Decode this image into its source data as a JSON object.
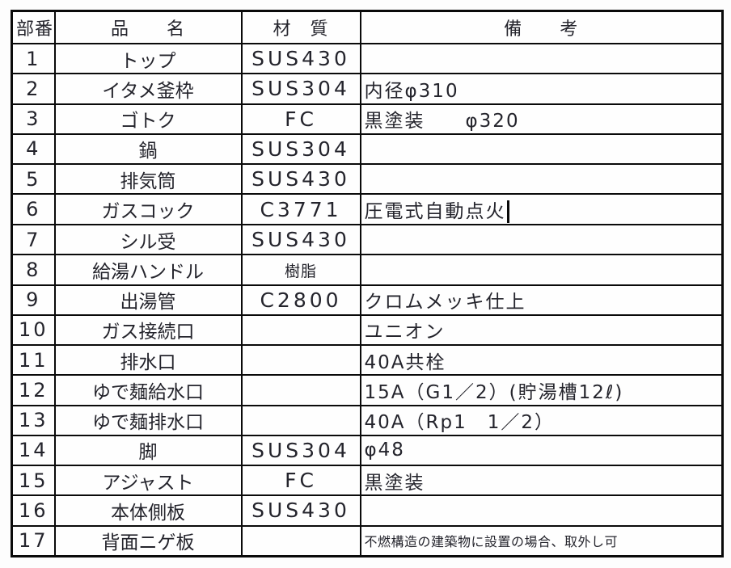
{
  "palette": {
    "border_color": "#0a0a0a",
    "text_color": "#24242c",
    "background_color": "#fdfdfd"
  },
  "table": {
    "headers": [
      "部番",
      "品　　名",
      "材　質",
      "備　　考"
    ],
    "rows": [
      {
        "no": "1",
        "name": "トップ",
        "material": "SUS430",
        "remark": ""
      },
      {
        "no": "2",
        "name": "イタメ釜枠",
        "material": "SUS304",
        "remark": "内径φ310"
      },
      {
        "no": "3",
        "name": "ゴトク",
        "material": "FC",
        "remark": "黒塗装　　φ320"
      },
      {
        "no": "4",
        "name": "鍋",
        "material": "SUS304",
        "remark": ""
      },
      {
        "no": "5",
        "name": "排気筒",
        "material": "SUS430",
        "remark": ""
      },
      {
        "no": "6",
        "name": "ガスコック",
        "material": "C3771",
        "remark": "圧電式自動点火",
        "caret": true
      },
      {
        "no": "7",
        "name": "シル受",
        "material": "SUS430",
        "remark": ""
      },
      {
        "no": "8",
        "name": "給湯ハンドル",
        "material": "樹脂",
        "remark": "",
        "material_small": true
      },
      {
        "no": "9",
        "name": "出湯管",
        "material": "C2800",
        "remark": "クロムメッキ仕上"
      },
      {
        "no": "10",
        "name": "ガス接続口",
        "material": "",
        "remark": "ユニオン"
      },
      {
        "no": "11",
        "name": "排水口",
        "material": "",
        "remark": "40A共栓"
      },
      {
        "no": "12",
        "name": "ゆで麺給水口",
        "material": "",
        "remark": "15A（G1／2）(貯湯槽12ℓ)"
      },
      {
        "no": "13",
        "name": "ゆで麺排水口",
        "material": "",
        "remark": "40A（Rp1　1／2）"
      },
      {
        "no": "14",
        "name": "脚",
        "material": "SUS304",
        "remark": "φ48"
      },
      {
        "no": "15",
        "name": "アジャスト",
        "material": "FC",
        "remark": "黒塗装"
      },
      {
        "no": "16",
        "name": "本体側板",
        "material": "SUS430",
        "remark": ""
      },
      {
        "no": "17",
        "name": "背面ニゲ板",
        "material": "",
        "remark": "不燃構造の建築物に設置の場合、取外し可",
        "remark_small": true
      }
    ]
  }
}
